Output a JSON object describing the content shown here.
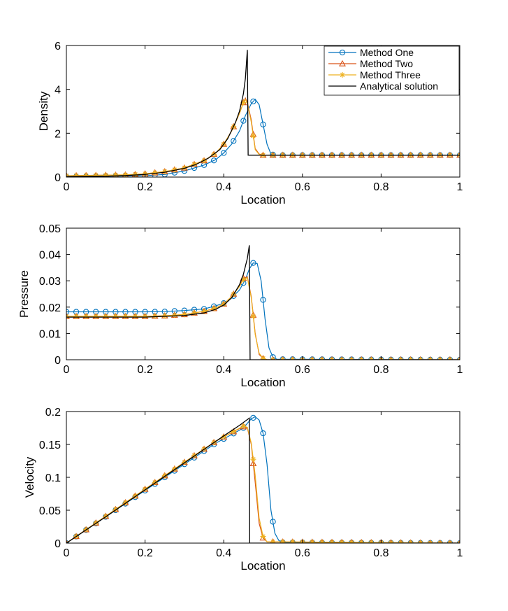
{
  "legend": {
    "placement": "top-right",
    "entries": [
      {
        "name": "Method One",
        "color": "#0072BD",
        "marker": "circle"
      },
      {
        "name": "Method Two",
        "color": "#D95319",
        "marker": "triangle"
      },
      {
        "name": "Method Three",
        "color": "#EDB120",
        "marker": "asterisk"
      },
      {
        "name": "Analytical solution",
        "color": "#000000",
        "marker": "none"
      }
    ]
  },
  "chart_data": [
    {
      "type": "line",
      "xlabel": "Location",
      "ylabel": "Density",
      "xlim": [
        0,
        1
      ],
      "ylim": [
        0,
        6
      ],
      "xticks": [
        0,
        0.2,
        0.4,
        0.6,
        0.8,
        1
      ],
      "xtick_labels": [
        "0",
        "0.2",
        "0.4",
        "0.6",
        "0.8",
        "1"
      ],
      "yticks": [
        0,
        2,
        4,
        6
      ],
      "ytick_labels": [
        "0",
        "2",
        "4",
        "6"
      ],
      "grid": false,
      "legend": true,
      "analytical": {
        "points": [
          [
            0,
            0.02
          ],
          [
            0.05,
            0.03
          ],
          [
            0.1,
            0.04
          ],
          [
            0.15,
            0.07
          ],
          [
            0.2,
            0.12
          ],
          [
            0.25,
            0.22
          ],
          [
            0.3,
            0.4
          ],
          [
            0.33,
            0.58
          ],
          [
            0.36,
            0.85
          ],
          [
            0.39,
            1.25
          ],
          [
            0.41,
            1.75
          ],
          [
            0.43,
            2.5
          ],
          [
            0.44,
            3.0
          ],
          [
            0.45,
            3.8
          ],
          [
            0.455,
            4.5
          ],
          [
            0.46,
            5.8
          ],
          [
            0.462,
            1.0
          ],
          [
            1,
            1.0
          ]
        ]
      },
      "methods": [
        {
          "name": "Method One",
          "points": [
            [
              0,
              0.02
            ],
            [
              0.2,
              0.06
            ],
            [
              0.25,
              0.12
            ],
            [
              0.3,
              0.28
            ],
            [
              0.35,
              0.55
            ],
            [
              0.38,
              0.8
            ],
            [
              0.4,
              1.1
            ],
            [
              0.42,
              1.5
            ],
            [
              0.44,
              2.1
            ],
            [
              0.455,
              2.8
            ],
            [
              0.47,
              3.35
            ],
            [
              0.48,
              3.55
            ],
            [
              0.49,
              3.3
            ],
            [
              0.5,
              2.4
            ],
            [
              0.51,
              1.5
            ],
            [
              0.52,
              1.05
            ],
            [
              0.53,
              1.0
            ],
            [
              1,
              1.0
            ]
          ]
        },
        {
          "name": "Method Two",
          "points": [
            [
              0,
              0.06
            ],
            [
              0.15,
              0.1
            ],
            [
              0.2,
              0.15
            ],
            [
              0.25,
              0.25
            ],
            [
              0.3,
              0.42
            ],
            [
              0.35,
              0.75
            ],
            [
              0.38,
              1.1
            ],
            [
              0.4,
              1.5
            ],
            [
              0.42,
              2.1
            ],
            [
              0.44,
              2.9
            ],
            [
              0.45,
              3.4
            ],
            [
              0.455,
              3.6
            ],
            [
              0.46,
              3.4
            ],
            [
              0.47,
              2.6
            ],
            [
              0.48,
              1.3
            ],
            [
              0.49,
              1.05
            ],
            [
              0.5,
              1.0
            ],
            [
              1,
              1.0
            ]
          ]
        },
        {
          "name": "Method Three",
          "points": [
            [
              0,
              0.06
            ],
            [
              0.15,
              0.1
            ],
            [
              0.2,
              0.15
            ],
            [
              0.25,
              0.25
            ],
            [
              0.3,
              0.42
            ],
            [
              0.35,
              0.75
            ],
            [
              0.38,
              1.1
            ],
            [
              0.4,
              1.5
            ],
            [
              0.42,
              2.1
            ],
            [
              0.44,
              2.9
            ],
            [
              0.45,
              3.4
            ],
            [
              0.455,
              3.55
            ],
            [
              0.46,
              3.35
            ],
            [
              0.47,
              2.5
            ],
            [
              0.48,
              1.25
            ],
            [
              0.49,
              1.03
            ],
            [
              0.5,
              1.0
            ],
            [
              1,
              1.0
            ]
          ]
        }
      ]
    },
    {
      "type": "line",
      "xlabel": "Location",
      "ylabel": "Pressure",
      "xlim": [
        0,
        1
      ],
      "ylim": [
        0,
        0.05
      ],
      "xticks": [
        0,
        0.2,
        0.4,
        0.6,
        0.8,
        1
      ],
      "xtick_labels": [
        "0",
        "0.2",
        "0.4",
        "0.6",
        "0.8",
        "1"
      ],
      "yticks": [
        0,
        0.01,
        0.02,
        0.03,
        0.04,
        0.05
      ],
      "ytick_labels": [
        "0",
        "0.01",
        "0.02",
        "0.03",
        "0.04",
        "0.05"
      ],
      "grid": false,
      "legend": false,
      "analytical": {
        "points": [
          [
            0,
            0.0162
          ],
          [
            0.2,
            0.0162
          ],
          [
            0.3,
            0.0168
          ],
          [
            0.35,
            0.0178
          ],
          [
            0.38,
            0.0192
          ],
          [
            0.4,
            0.0208
          ],
          [
            0.42,
            0.0235
          ],
          [
            0.44,
            0.0285
          ],
          [
            0.45,
            0.0325
          ],
          [
            0.46,
            0.0385
          ],
          [
            0.465,
            0.0435
          ],
          [
            0.467,
            0.0
          ],
          [
            1,
            0.0
          ]
        ]
      },
      "methods": [
        {
          "name": "Method One",
          "points": [
            [
              0,
              0.0182
            ],
            [
              0.2,
              0.0182
            ],
            [
              0.25,
              0.0183
            ],
            [
              0.3,
              0.0187
            ],
            [
              0.35,
              0.0193
            ],
            [
              0.38,
              0.0205
            ],
            [
              0.4,
              0.0215
            ],
            [
              0.42,
              0.0235
            ],
            [
              0.44,
              0.0265
            ],
            [
              0.455,
              0.0305
            ],
            [
              0.465,
              0.0345
            ],
            [
              0.475,
              0.0368
            ],
            [
              0.485,
              0.0366
            ],
            [
              0.495,
              0.03
            ],
            [
              0.505,
              0.0155
            ],
            [
              0.515,
              0.0045
            ],
            [
              0.525,
              0.001
            ],
            [
              0.535,
              0.0002
            ],
            [
              1,
              0.0
            ]
          ]
        },
        {
          "name": "Method Two",
          "points": [
            [
              0,
              0.0165
            ],
            [
              0.2,
              0.0165
            ],
            [
              0.25,
              0.0167
            ],
            [
              0.3,
              0.0172
            ],
            [
              0.35,
              0.0184
            ],
            [
              0.38,
              0.0197
            ],
            [
              0.4,
              0.0212
            ],
            [
              0.42,
              0.024
            ],
            [
              0.44,
              0.028
            ],
            [
              0.45,
              0.031
            ],
            [
              0.46,
              0.0315
            ],
            [
              0.47,
              0.024
            ],
            [
              0.48,
              0.01
            ],
            [
              0.49,
              0.002
            ],
            [
              0.5,
              0.0005
            ],
            [
              0.51,
              0.0
            ],
            [
              1,
              0.0
            ]
          ]
        },
        {
          "name": "Method Three",
          "points": [
            [
              0,
              0.0165
            ],
            [
              0.2,
              0.0165
            ],
            [
              0.25,
              0.0167
            ],
            [
              0.3,
              0.0172
            ],
            [
              0.35,
              0.0184
            ],
            [
              0.38,
              0.0197
            ],
            [
              0.4,
              0.0212
            ],
            [
              0.42,
              0.024
            ],
            [
              0.44,
              0.0278
            ],
            [
              0.45,
              0.0305
            ],
            [
              0.46,
              0.0312
            ],
            [
              0.47,
              0.0235
            ],
            [
              0.48,
              0.0095
            ],
            [
              0.49,
              0.0025
            ],
            [
              0.5,
              0.0005
            ],
            [
              0.51,
              0.0
            ],
            [
              1,
              0.0
            ]
          ]
        }
      ]
    },
    {
      "type": "line",
      "xlabel": "Location",
      "ylabel": "Velocity",
      "xlim": [
        0,
        1
      ],
      "ylim": [
        0,
        0.2
      ],
      "xticks": [
        0,
        0.2,
        0.4,
        0.6,
        0.8,
        1
      ],
      "xtick_labels": [
        "0",
        "0.2",
        "0.4",
        "0.6",
        "0.8",
        "1"
      ],
      "yticks": [
        0,
        0.05,
        0.1,
        0.15,
        0.2
      ],
      "ytick_labels": [
        "0",
        "0.05",
        "0.1",
        "0.15",
        "0.2"
      ],
      "grid": false,
      "legend": false,
      "analytical": {
        "points": [
          [
            0,
            0
          ],
          [
            0.1,
            0.04
          ],
          [
            0.2,
            0.081
          ],
          [
            0.3,
            0.122
          ],
          [
            0.4,
            0.163
          ],
          [
            0.44,
            0.179
          ],
          [
            0.465,
            0.19
          ],
          [
            0.466,
            0.0
          ],
          [
            1,
            0.0
          ]
        ]
      },
      "methods": [
        {
          "name": "Method One",
          "points": [
            [
              0,
              0
            ],
            [
              0.1,
              0.04
            ],
            [
              0.2,
              0.08
            ],
            [
              0.3,
              0.12
            ],
            [
              0.38,
              0.152
            ],
            [
              0.42,
              0.165
            ],
            [
              0.45,
              0.175
            ],
            [
              0.46,
              0.182
            ],
            [
              0.47,
              0.189
            ],
            [
              0.48,
              0.192
            ],
            [
              0.49,
              0.187
            ],
            [
              0.5,
              0.167
            ],
            [
              0.51,
              0.12
            ],
            [
              0.52,
              0.05
            ],
            [
              0.53,
              0.015
            ],
            [
              0.54,
              0.004
            ],
            [
              0.55,
              0.001
            ],
            [
              1,
              0.0
            ]
          ]
        },
        {
          "name": "Method Two",
          "points": [
            [
              0,
              0
            ],
            [
              0.1,
              0.041
            ],
            [
              0.2,
              0.082
            ],
            [
              0.3,
              0.123
            ],
            [
              0.38,
              0.155
            ],
            [
              0.42,
              0.168
            ],
            [
              0.45,
              0.177
            ],
            [
              0.46,
              0.175
            ],
            [
              0.47,
              0.15
            ],
            [
              0.48,
              0.092
            ],
            [
              0.49,
              0.03
            ],
            [
              0.5,
              0.008
            ],
            [
              0.51,
              0.002
            ],
            [
              1,
              0.0
            ]
          ]
        },
        {
          "name": "Method Three",
          "points": [
            [
              0,
              0
            ],
            [
              0.1,
              0.041
            ],
            [
              0.2,
              0.082
            ],
            [
              0.3,
              0.123
            ],
            [
              0.38,
              0.155
            ],
            [
              0.42,
              0.168
            ],
            [
              0.45,
              0.178
            ],
            [
              0.46,
              0.176
            ],
            [
              0.47,
              0.152
            ],
            [
              0.48,
              0.103
            ],
            [
              0.49,
              0.038
            ],
            [
              0.5,
              0.01
            ],
            [
              0.51,
              0.002
            ],
            [
              1,
              0.0
            ]
          ]
        }
      ]
    }
  ]
}
